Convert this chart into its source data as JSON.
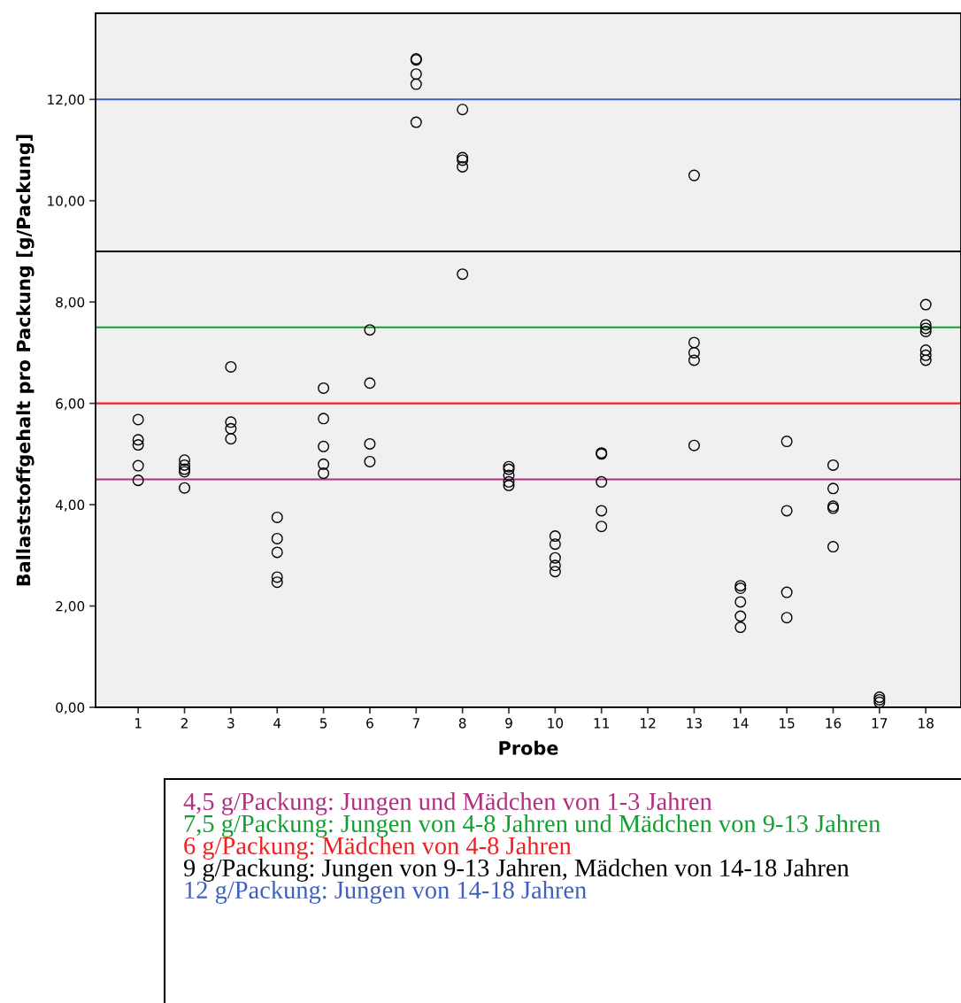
{
  "chart_data": {
    "type": "scatter",
    "xlabel": "Probe",
    "ylabel": "Ballaststoffgehalt pro Packung [g/Packung]",
    "categories": [
      "1",
      "2",
      "3",
      "4",
      "5",
      "6",
      "7",
      "8",
      "9",
      "10",
      "11",
      "12",
      "13",
      "14",
      "15",
      "16",
      "17",
      "18"
    ],
    "series": [
      {
        "color": "#000000",
        "x": [
          "1",
          "1",
          "1",
          "1",
          "1",
          "2",
          "2",
          "2",
          "2",
          "2",
          "3",
          "3",
          "3",
          "3",
          "4",
          "4",
          "4",
          "4",
          "4",
          "5",
          "5",
          "5",
          "5",
          "5",
          "6",
          "6",
          "6",
          "6"
        ],
        "values": [
          5.68,
          5.28,
          5.18,
          4.77,
          4.48,
          4.88,
          4.78,
          4.7,
          4.65,
          4.33,
          6.72,
          5.63,
          5.5,
          5.3,
          3.75,
          3.33,
          3.06,
          2.57,
          2.47,
          6.3,
          5.7,
          5.15,
          4.8,
          4.62,
          7.45,
          6.4,
          5.2,
          4.85
        ]
      },
      {
        "color": "#000000",
        "x": [
          "7",
          "7",
          "7",
          "7",
          "7",
          "8",
          "8",
          "8",
          "8",
          "8",
          "9",
          "9",
          "9",
          "9",
          "9",
          "10",
          "10",
          "10",
          "10",
          "10",
          "11",
          "11",
          "11",
          "11",
          "11"
        ],
        "values": [
          12.8,
          12.78,
          12.5,
          12.3,
          11.55,
          11.8,
          10.85,
          10.8,
          10.67,
          8.55,
          4.75,
          4.7,
          4.58,
          4.45,
          4.38,
          3.38,
          3.22,
          2.95,
          2.8,
          2.68,
          5.02,
          5.0,
          4.45,
          3.88,
          3.57
        ]
      },
      {
        "color": "#000000",
        "x": [
          "13",
          "13",
          "13",
          "13",
          "13",
          "14",
          "14",
          "14",
          "14",
          "14",
          "15",
          "15",
          "15",
          "15",
          "16",
          "16",
          "16",
          "16",
          "16",
          "17",
          "17",
          "17",
          "18",
          "18",
          "18",
          "18",
          "18",
          "18",
          "18"
        ],
        "values": [
          10.5,
          7.2,
          7.0,
          6.85,
          5.17,
          2.4,
          2.35,
          2.08,
          1.8,
          1.58,
          5.25,
          3.88,
          2.27,
          1.77,
          4.78,
          4.32,
          3.97,
          3.93,
          3.17,
          0.2,
          0.15,
          0.1,
          7.95,
          7.55,
          7.48,
          7.42,
          7.05,
          6.95,
          6.85
        ]
      }
    ],
    "marker": "circle",
    "ylim": [
      0,
      13.7
    ],
    "yticks": [
      {
        "value": 0,
        "label": "0,00"
      },
      {
        "value": 2,
        "label": "2,00"
      },
      {
        "value": 4,
        "label": "4,00"
      },
      {
        "value": 6,
        "label": "6,00"
      },
      {
        "value": 8,
        "label": "8,00"
      },
      {
        "value": 10,
        "label": "10,00"
      },
      {
        "value": 12,
        "label": "12,00"
      }
    ],
    "grid": false,
    "ref_lines": [
      {
        "axis": "y",
        "value": 4.5,
        "label": "4,5 g/Packung: Jungen und Mädchen von 1-3 Jahren",
        "color": "#b03080"
      },
      {
        "axis": "y",
        "value": 7.5,
        "label": "7,5 g/Packung: Jungen von 4-8 Jahren und Mädchen von 9-13 Jahren",
        "color": "#10a030"
      },
      {
        "axis": "y",
        "value": 6,
        "label": "6 g/Packung: Mädchen von 4-8 Jahren",
        "color": "#f02020"
      },
      {
        "axis": "y",
        "value": 9,
        "label": "9 g/Packung: Jungen von 9-13 Jahren, Mädchen von 14-18 Jahren",
        "color": "#000000"
      },
      {
        "axis": "y",
        "value": 12,
        "label": "12 g/Packung: Jungen von 14-18 Jahren",
        "color": "#4060c0"
      }
    ]
  }
}
